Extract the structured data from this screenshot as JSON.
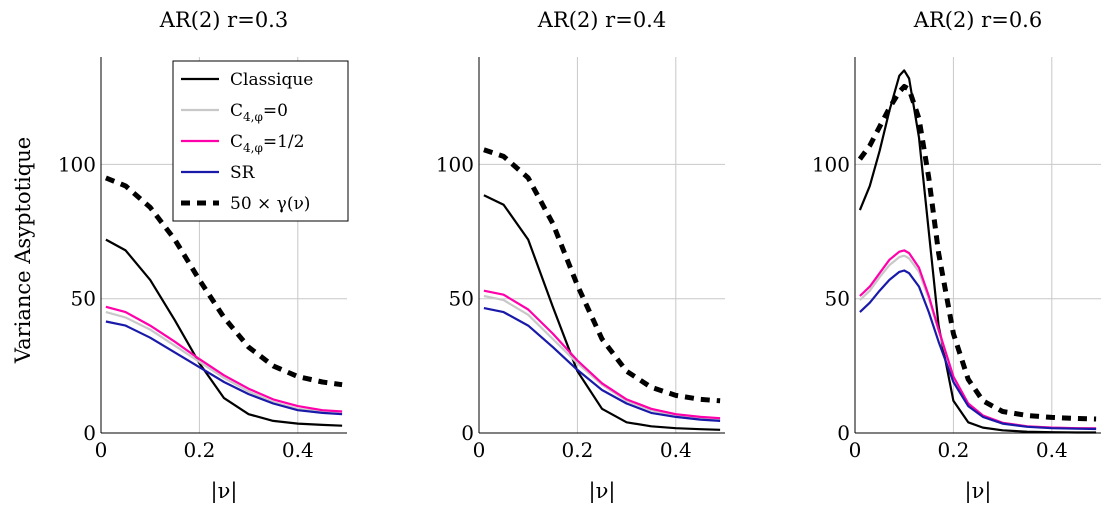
{
  "figure": {
    "ylabel": "Variance Asyptotique",
    "legend": {
      "placement": "top-right of first panel",
      "entries": [
        {
          "label": "Classique",
          "color": "#000000",
          "dashed": false
        },
        {
          "label": "C",
          "sub": "4,φ",
          "suffix": "=0",
          "color": "#c8c8c8",
          "dashed": false
        },
        {
          "label": "C",
          "sub": "4,φ",
          "suffix": "=1/2",
          "color": "#ff00aa",
          "dashed": false
        },
        {
          "label": "SR",
          "color": "#1a1aaa",
          "dashed": false
        },
        {
          "label": "50 × γ(ν)",
          "color": "#000000",
          "dashed": true
        }
      ]
    }
  },
  "chart_data": [
    {
      "type": "line",
      "title": "AR(2) r=0.3",
      "xlabel": "|ν|",
      "ylabel": "Variance Asyptotique",
      "xlim": [
        0,
        0.5
      ],
      "ylim": [
        0,
        140
      ],
      "xticks": [
        "0",
        "0.2",
        "0.4"
      ],
      "yticks": [
        "0",
        "50",
        "100"
      ],
      "grid": true,
      "x": [
        0.01,
        0.05,
        0.1,
        0.15,
        0.2,
        0.25,
        0.3,
        0.35,
        0.4,
        0.45,
        0.49
      ],
      "series": [
        {
          "name": "Classique",
          "color": "#000000",
          "dashed": false,
          "values": [
            72,
            68,
            57,
            42,
            26,
            13,
            7,
            4.5,
            3.5,
            3,
            2.7
          ]
        },
        {
          "name": "C4,φ=0",
          "color": "#c8c8c8",
          "dashed": false,
          "values": [
            45,
            43,
            38.5,
            32.5,
            26.5,
            20.5,
            15.5,
            11.5,
            9,
            8,
            7.5
          ]
        },
        {
          "name": "C4,φ=1/2",
          "color": "#ff00aa",
          "dashed": false,
          "values": [
            47,
            45,
            40,
            34,
            27.5,
            21.5,
            16.5,
            12.5,
            10,
            8.5,
            8
          ]
        },
        {
          "name": "SR",
          "color": "#1a1aaa",
          "dashed": false,
          "values": [
            41.5,
            40,
            35.5,
            30,
            24.5,
            19,
            14.5,
            11,
            8.5,
            7.5,
            7
          ]
        },
        {
          "name": "50 × γ(ν)",
          "color": "#000000",
          "dashed": true,
          "values": [
            95,
            92,
            84,
            72,
            57,
            43,
            32,
            25,
            21,
            19,
            18
          ]
        }
      ]
    },
    {
      "type": "line",
      "title": "AR(2) r=0.4",
      "xlabel": "|ν|",
      "xlim": [
        0,
        0.5
      ],
      "ylim": [
        0,
        140
      ],
      "xticks": [
        "0",
        "0.2",
        "0.4"
      ],
      "yticks": [
        "0",
        "50",
        "100"
      ],
      "grid": true,
      "x": [
        0.01,
        0.05,
        0.1,
        0.15,
        0.2,
        0.25,
        0.3,
        0.35,
        0.4,
        0.45,
        0.49
      ],
      "series": [
        {
          "name": "Classique",
          "color": "#000000",
          "dashed": false,
          "values": [
            88.5,
            85,
            72,
            47,
            23,
            9,
            4,
            2.5,
            1.8,
            1.4,
            1.2
          ]
        },
        {
          "name": "C4,φ=0",
          "color": "#c8c8c8",
          "dashed": false,
          "values": [
            51,
            49.5,
            44,
            35,
            26,
            18,
            12,
            8.5,
            6.5,
            5.5,
            5
          ]
        },
        {
          "name": "C4,φ=1/2",
          "color": "#ff00aa",
          "dashed": false,
          "values": [
            53,
            51.5,
            46,
            37,
            27,
            18.5,
            12.5,
            9,
            7,
            6,
            5.5
          ]
        },
        {
          "name": "SR",
          "color": "#1a1aaa",
          "dashed": false,
          "values": [
            46.5,
            45,
            40,
            32,
            23.5,
            16,
            11,
            7.5,
            6,
            5,
            4.5
          ]
        },
        {
          "name": "50 × γ(ν)",
          "color": "#000000",
          "dashed": true,
          "values": [
            105.5,
            103,
            95,
            78,
            55,
            35,
            23,
            17,
            14,
            12.5,
            12
          ]
        }
      ]
    },
    {
      "type": "line",
      "title": "AR(2) r=0.6",
      "xlabel": "|ν|",
      "xlim": [
        0,
        0.5
      ],
      "ylim": [
        0,
        140
      ],
      "xticks": [
        "0",
        "0.2",
        "0.4"
      ],
      "yticks": [
        "0",
        "50",
        "100"
      ],
      "grid": true,
      "x": [
        0.01,
        0.03,
        0.05,
        0.07,
        0.09,
        0.1,
        0.11,
        0.13,
        0.15,
        0.17,
        0.2,
        0.23,
        0.26,
        0.3,
        0.35,
        0.4,
        0.45,
        0.49
      ],
      "series": [
        {
          "name": "Classique",
          "color": "#000000",
          "dashed": false,
          "values": [
            83,
            92,
            105,
            120,
            133,
            135,
            132,
            110,
            75,
            40,
            12,
            4,
            2,
            1,
            0.5,
            0.3,
            0.2,
            0.2
          ]
        },
        {
          "name": "C4,φ=0",
          "color": "#c8c8c8",
          "dashed": false,
          "values": [
            49.5,
            53,
            58,
            62.5,
            65.5,
            66,
            65,
            60,
            50,
            38,
            21,
            11,
            6.5,
            3.8,
            2.5,
            2,
            1.8,
            1.7
          ]
        },
        {
          "name": "C4,φ=1/2",
          "color": "#ff00aa",
          "dashed": false,
          "values": [
            51,
            54.5,
            59.5,
            64.5,
            67.5,
            68,
            67,
            61.5,
            51,
            38.5,
            21,
            11,
            6.5,
            3.8,
            2.5,
            2,
            1.8,
            1.7
          ]
        },
        {
          "name": "SR",
          "color": "#1a1aaa",
          "dashed": false,
          "values": [
            45,
            48.5,
            53,
            57,
            60,
            60.5,
            59.5,
            54.5,
            45,
            34,
            19,
            10,
            6,
            3.5,
            2.3,
            1.8,
            1.6,
            1.5
          ]
        },
        {
          "name": "50 × γ(ν)",
          "color": "#000000",
          "dashed": true,
          "values": [
            102,
            107,
            114,
            121,
            127,
            129,
            128,
            117,
            95,
            67,
            37,
            20,
            12,
            8,
            6.5,
            5.8,
            5.4,
            5.2
          ]
        }
      ]
    }
  ]
}
